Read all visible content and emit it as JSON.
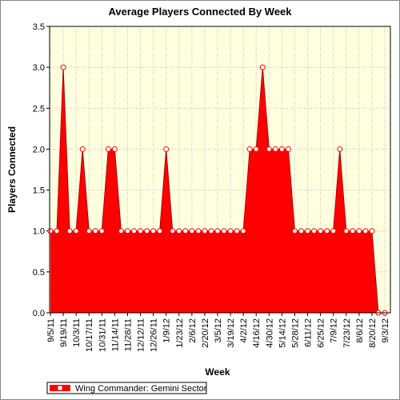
{
  "chart_data": {
    "type": "area",
    "title": "Average Players Connected By Week",
    "x_label": "Week",
    "y_label": "Players Connected",
    "categories": [
      "9/5/11",
      null,
      "9/19/11",
      null,
      "10/3/11",
      null,
      "10/17/11",
      null,
      "10/31/11",
      null,
      "11/14/11",
      null,
      "11/28/11",
      null,
      "12/12/11",
      null,
      "12/26/11",
      null,
      "1/9/12",
      null,
      "1/23/12",
      null,
      "2/6/12",
      null,
      "2/20/12",
      null,
      "3/5/12",
      null,
      "3/19/12",
      null,
      "4/2/12",
      null,
      "4/16/12",
      null,
      "4/30/12",
      null,
      "5/14/12",
      null,
      "5/28/12",
      null,
      "6/11/12",
      null,
      "6/25/12",
      null,
      "7/9/12",
      null,
      "7/23/12",
      null,
      "8/6/12",
      null,
      "8/20/12",
      null,
      "9/3/12"
    ],
    "series": [
      {
        "name": "Wing Commander: Gemini Sector",
        "color": "#ff0000",
        "values": [
          1,
          1,
          3,
          1,
          1,
          2,
          1,
          1,
          1,
          2,
          2,
          1,
          1,
          1,
          1,
          1,
          1,
          1,
          2,
          1,
          1,
          1,
          1,
          1,
          1,
          1,
          1,
          1,
          1,
          1,
          1,
          2,
          2,
          3,
          2,
          2,
          2,
          2,
          1,
          1,
          1,
          1,
          1,
          1,
          1,
          2,
          1,
          1,
          1,
          1,
          1,
          0,
          0
        ]
      }
    ],
    "ylim": [
      0,
      3.5
    ],
    "yticks": [
      {
        "value": 0,
        "label": "0.0"
      },
      {
        "value": 0.5,
        "label": "0.5"
      },
      {
        "value": 1,
        "label": "1.0"
      },
      {
        "value": 1.5,
        "label": "1.5"
      },
      {
        "value": 2,
        "label": "2.0"
      },
      {
        "value": 2.5,
        "label": "2.5"
      },
      {
        "value": 3,
        "label": "3.0"
      },
      {
        "value": 3.5,
        "label": "3.5"
      }
    ],
    "grid": true,
    "legend": "bottom-left"
  }
}
